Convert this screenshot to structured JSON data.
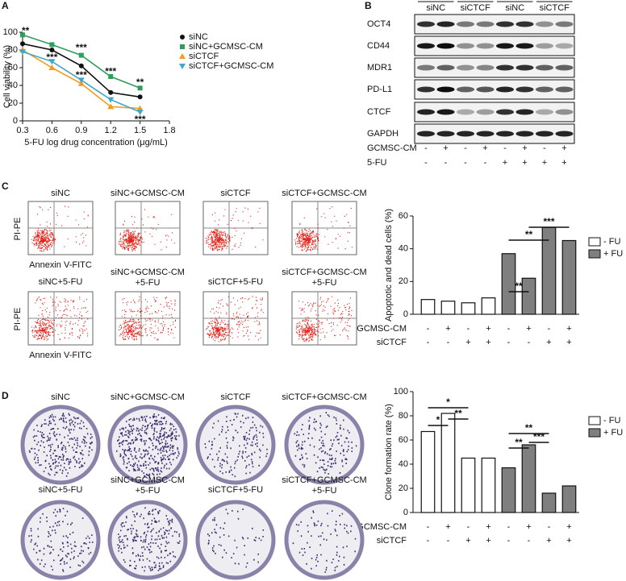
{
  "panel_letters": [
    "A",
    "B",
    "C",
    "D"
  ],
  "chart_data": [
    {
      "type": "line",
      "y_label": "Cell viability (%)",
      "x_label": "5-FU log drug concentration (μg/mL)",
      "x": [
        0.3,
        0.6,
        0.9,
        1.2,
        1.5
      ],
      "xlim": [
        0.3,
        1.8
      ],
      "xticks": [
        0.3,
        0.6,
        0.9,
        1.2,
        1.5,
        1.8
      ],
      "ylim": [
        0,
        100
      ],
      "yticks": [
        0,
        20,
        40,
        60,
        80,
        100
      ],
      "legend": "upper right",
      "series": [
        {
          "name": "siNC",
          "color": "#111111",
          "marker": "circle",
          "values": [
            87,
            80,
            62,
            32,
            27
          ]
        },
        {
          "name": "siNC+GCMSC-CM",
          "color": "#2e9e5b",
          "marker": "square",
          "values": [
            97,
            86,
            74,
            50,
            37
          ]
        },
        {
          "name": "siCTCF",
          "color": "#f39c1f",
          "marker": "triangle-up",
          "values": [
            80,
            60,
            42,
            16,
            14
          ]
        },
        {
          "name": "siCTCF+GCMSC-CM",
          "color": "#3fa7c9",
          "marker": "triangle-down",
          "values": [
            78,
            67,
            46,
            24,
            10
          ]
        }
      ],
      "annotations": [
        "**",
        "***",
        "***",
        "***",
        "***",
        "**",
        "***"
      ]
    },
    {
      "type": "bar",
      "y_label": "Apoptotic and dead cells (%)",
      "categories": [
        null,
        null,
        null,
        null,
        null,
        null,
        null,
        null
      ],
      "ylim": [
        0,
        60
      ],
      "yticks": [
        0,
        20,
        40,
        60
      ],
      "series": [
        {
          "name": "- FU",
          "color": "#ffffff",
          "values": [
            9,
            8,
            7,
            10,
            null,
            null,
            null,
            null
          ]
        },
        {
          "name": "+ FU",
          "color": "#7f7f7f",
          "values": [
            null,
            null,
            null,
            null,
            37,
            22,
            53,
            45
          ]
        }
      ],
      "condition_rows": [
        {
          "label": "GCMSC-CM",
          "signs": [
            "-",
            "+",
            "-",
            "+",
            "-",
            "+",
            "-",
            "+"
          ]
        },
        {
          "label": "siCTCF",
          "signs": [
            "-",
            "-",
            "+",
            "+",
            "-",
            "-",
            "+",
            "+"
          ]
        }
      ],
      "annotations": [
        "**",
        "**",
        "***"
      ]
    },
    {
      "type": "bar",
      "y_label": "Clone formation rate (%)",
      "categories": [
        null,
        null,
        null,
        null,
        null,
        null,
        null,
        null
      ],
      "ylim": [
        0,
        100
      ],
      "yticks": [
        0,
        20,
        40,
        60,
        80,
        100
      ],
      "series": [
        {
          "name": "- FU",
          "color": "#ffffff",
          "values": [
            67,
            82,
            45,
            45,
            null,
            null,
            null,
            null
          ]
        },
        {
          "name": "+ FU",
          "color": "#7f7f7f",
          "values": [
            null,
            null,
            null,
            null,
            37,
            56,
            16,
            22
          ]
        }
      ],
      "condition_rows": [
        {
          "label": "GCMSC-CM",
          "signs": [
            "-",
            "+",
            "-",
            "+",
            "-",
            "+",
            "-",
            "+"
          ]
        },
        {
          "label": "siCTCF",
          "signs": [
            "-",
            "-",
            "+",
            "+",
            "-",
            "-",
            "+",
            "+"
          ]
        }
      ],
      "annotations": [
        "*",
        "*",
        "**",
        "**",
        "**",
        "***"
      ]
    }
  ],
  "western_blot": {
    "groups": [
      "siNC",
      "siCTCF",
      "siNC",
      "siCTCF"
    ],
    "proteins": [
      "OCT4",
      "CD44",
      "MDR1",
      "PD-L1",
      "CTCF",
      "GAPDH"
    ],
    "rows": [
      {
        "label": "GCMSC-CM",
        "signs": [
          "-",
          "+",
          "-",
          "+",
          "-",
          "+",
          "-",
          "+"
        ]
      },
      {
        "label": "5-FU",
        "signs": [
          "-",
          "-",
          "-",
          "-",
          "+",
          "+",
          "+",
          "+"
        ]
      }
    ]
  },
  "flow_cytometry": {
    "y_label": "PI-PE",
    "x_label": "Annexin V-FITC",
    "top": [
      [
        "siNC"
      ],
      [
        "siNC+GCMSC-CM"
      ],
      [
        "siCTCF"
      ],
      [
        "siCTCF+GCMSC-CM"
      ]
    ],
    "bottom": [
      [
        "siNC+5-FU"
      ],
      [
        "siNC+GCMSC-CM",
        "+5-FU"
      ],
      [
        "siCTCF+5-FU"
      ],
      [
        "siCTCF+GCMSC-CM",
        "+5-FU"
      ]
    ]
  },
  "colony": {
    "top": [
      [
        "siNC"
      ],
      [
        "siNC+GCMSC-CM"
      ],
      [
        "siCTCF"
      ],
      [
        "siCTCF+GCMSC-CM"
      ]
    ],
    "bottom": [
      [
        "siNC+5-FU"
      ],
      [
        "siNC+GCMSC-CM",
        "+5-FU"
      ],
      [
        "siCTCF+5-FU"
      ],
      [
        "siCTCF+GCMSC-CM",
        "+5-FU"
      ]
    ]
  }
}
